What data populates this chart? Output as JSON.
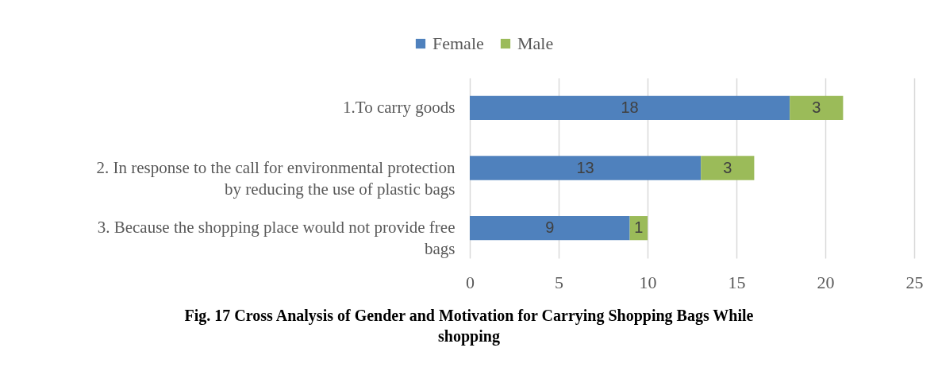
{
  "chart_data": {
    "type": "bar",
    "orientation": "horizontal",
    "stacked": true,
    "categories": [
      "1.To carry goods",
      "2. In response to the call for environmental protection by reducing the use of plastic bags",
      "3. Because the shopping place would not provide free bags"
    ],
    "series": [
      {
        "name": "Female",
        "color": "#4f81bd",
        "values": [
          18,
          13,
          9
        ]
      },
      {
        "name": "Male",
        "color": "#9bbb59",
        "values": [
          3,
          3,
          1
        ]
      }
    ],
    "xlim": [
      0,
      25
    ],
    "xticks": [
      0,
      5,
      10,
      15,
      20,
      25
    ],
    "grid": "x",
    "legend": "top",
    "data_labels": true,
    "annotations": [
      "Fig. 17 Cross Analysis of Gender and Motivation for Carrying Shopping Bags While shopping"
    ]
  }
}
